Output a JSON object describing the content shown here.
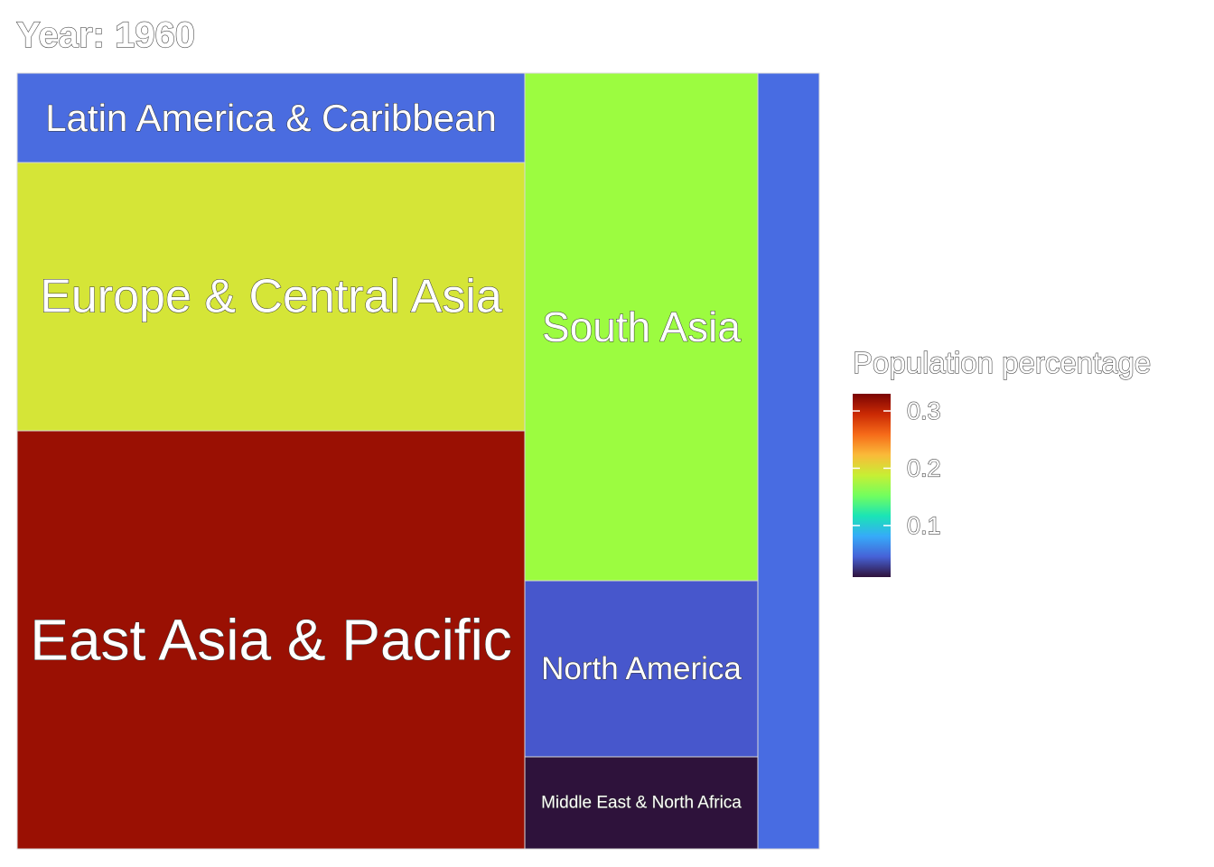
{
  "chart_data": {
    "type": "treemap",
    "title": "Year: 1960",
    "legend": {
      "title": "Population percentage",
      "position": "right",
      "ticks": [
        "0.1",
        "0.2",
        "0.3"
      ],
      "tick_values": [
        0.1,
        0.2,
        0.3
      ],
      "range": [
        0.01,
        0.33
      ],
      "palette": [
        "#30123B",
        "#4662D7",
        "#36AAF9",
        "#1AE4B6",
        "#72FE5E",
        "#C7EF34",
        "#FABA39",
        "#F66B19",
        "#CB2A04",
        "#7A0403"
      ]
    },
    "tiles": [
      {
        "label": "East Asia & Pacific",
        "value": 0.33,
        "color": "#9A1003"
      },
      {
        "label": "Europe & Central Asia",
        "value": 0.22,
        "color": "#D5E537"
      },
      {
        "label": "Latin America & Caribbean",
        "value": 0.07,
        "color": "#4A6CE0"
      },
      {
        "label": "South Asia",
        "value": 0.19,
        "color": "#9CFC40"
      },
      {
        "label": "North America",
        "value": 0.07,
        "color": "#4757CC"
      },
      {
        "label": "Middle East & North Africa",
        "value": 0.03,
        "color": "#2E123B"
      },
      {
        "label": "",
        "value": 0.09,
        "color": "#486CE2"
      }
    ]
  }
}
